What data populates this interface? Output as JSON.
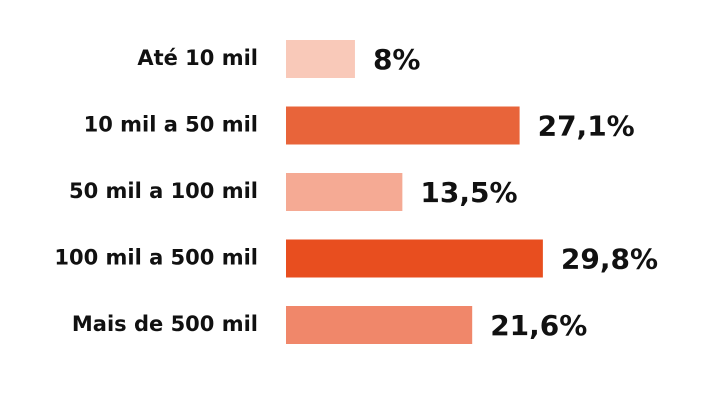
{
  "chart_data": {
    "type": "bar",
    "orientation": "horizontal",
    "categories": [
      "Até 10 mil",
      "10 mil a 50 mil",
      "50 mil a 100 mil",
      "100 mil a 500 mil",
      "Mais de 500 mil"
    ],
    "values": [
      8,
      27.1,
      13.5,
      29.8,
      21.6
    ],
    "value_labels": [
      "8%",
      "27,1%",
      "13,5%",
      "29,8%",
      "21,6%"
    ],
    "colors": [
      "#f9c9b9",
      "#e8643a",
      "#f5aa94",
      "#e84e1f",
      "#f0876a"
    ]
  }
}
